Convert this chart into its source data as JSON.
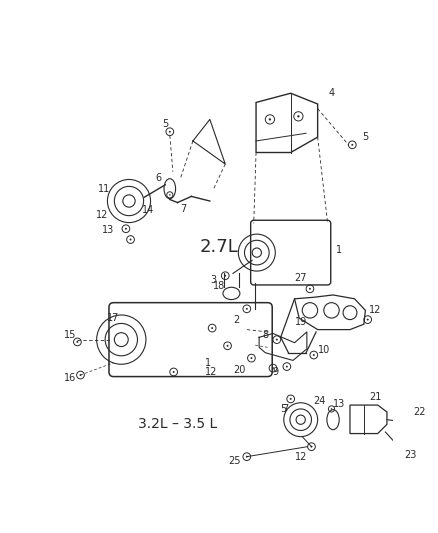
{
  "bg_color": "#ffffff",
  "line_color": "#2a2a2a",
  "title_2_7": "2.7L",
  "title_3_2": "3.2L – 3.5 L",
  "fig_w": 4.38,
  "fig_h": 5.33,
  "dpi": 100
}
